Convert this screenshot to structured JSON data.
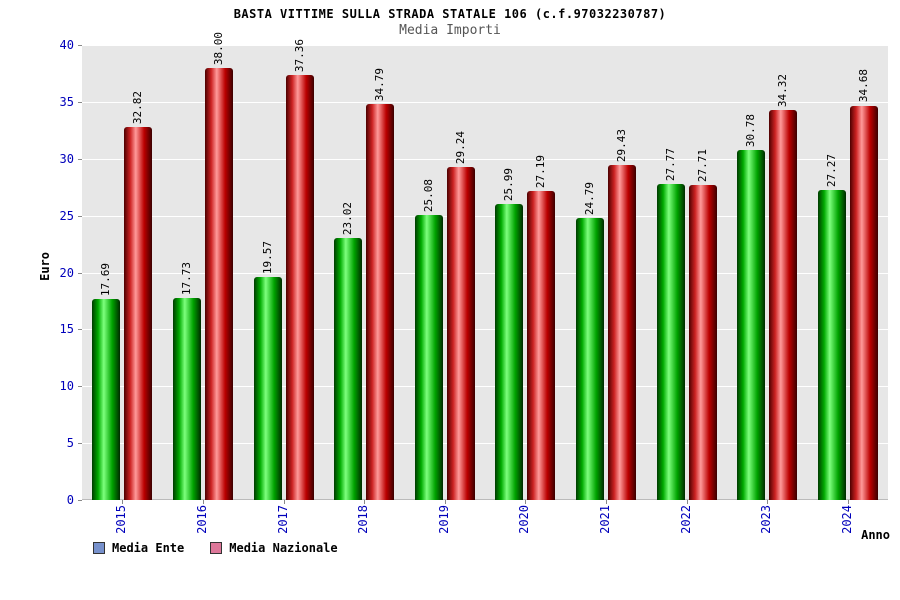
{
  "header": {
    "title": "BASTA VITTIME SULLA STRADA STATALE 106 (c.f.97032230787)",
    "subtitle": "Media Importi"
  },
  "axes": {
    "y_label": "Euro",
    "x_label": "Anno",
    "y_ticks": [
      0,
      5,
      10,
      15,
      20,
      25,
      30,
      35,
      40
    ]
  },
  "legend": {
    "items": [
      {
        "label": "Media Ente",
        "swatch_color": "#7791cc"
      },
      {
        "label": "Media Nazionale",
        "swatch_color": "#dd7799"
      }
    ]
  },
  "chart_data": {
    "type": "bar",
    "title": "BASTA VITTIME SULLA STRADA STATALE 106 (c.f.97032230787)",
    "subtitle": "Media Importi",
    "categories": [
      "2015",
      "2016",
      "2017",
      "2018",
      "2019",
      "2020",
      "2021",
      "2022",
      "2023",
      "2024"
    ],
    "series": [
      {
        "name": "Media Ente",
        "color": "#00cc00",
        "values": [
          17.69,
          17.73,
          19.57,
          23.02,
          25.08,
          25.99,
          24.79,
          27.77,
          30.78,
          27.27
        ]
      },
      {
        "name": "Media Nazionale",
        "color": "#dd1111",
        "values": [
          32.82,
          38.0,
          37.36,
          34.79,
          29.24,
          27.19,
          29.43,
          27.71,
          34.32,
          34.68
        ]
      }
    ],
    "ylim": [
      0,
      40
    ],
    "ytick_step": 5,
    "grid": true,
    "legend_position": "bottom-left",
    "xlabel": "Anno",
    "ylabel": "Euro",
    "value_label_format": "2-decimals"
  },
  "colors": {
    "axis_text": "#0000bb",
    "plot_bg": "#e7e7e7",
    "grid_line": "#ffffff",
    "value_label": "#000000"
  },
  "bar_gradients": {
    "Media Ente": [
      "#003b00",
      "#00aa00",
      "#7dff7d",
      "#00a300",
      "#002a00"
    ],
    "Media Nazionale": [
      "#4d0000",
      "#cc2222",
      "#ff9a9a",
      "#bb0000",
      "#3b0000"
    ]
  }
}
